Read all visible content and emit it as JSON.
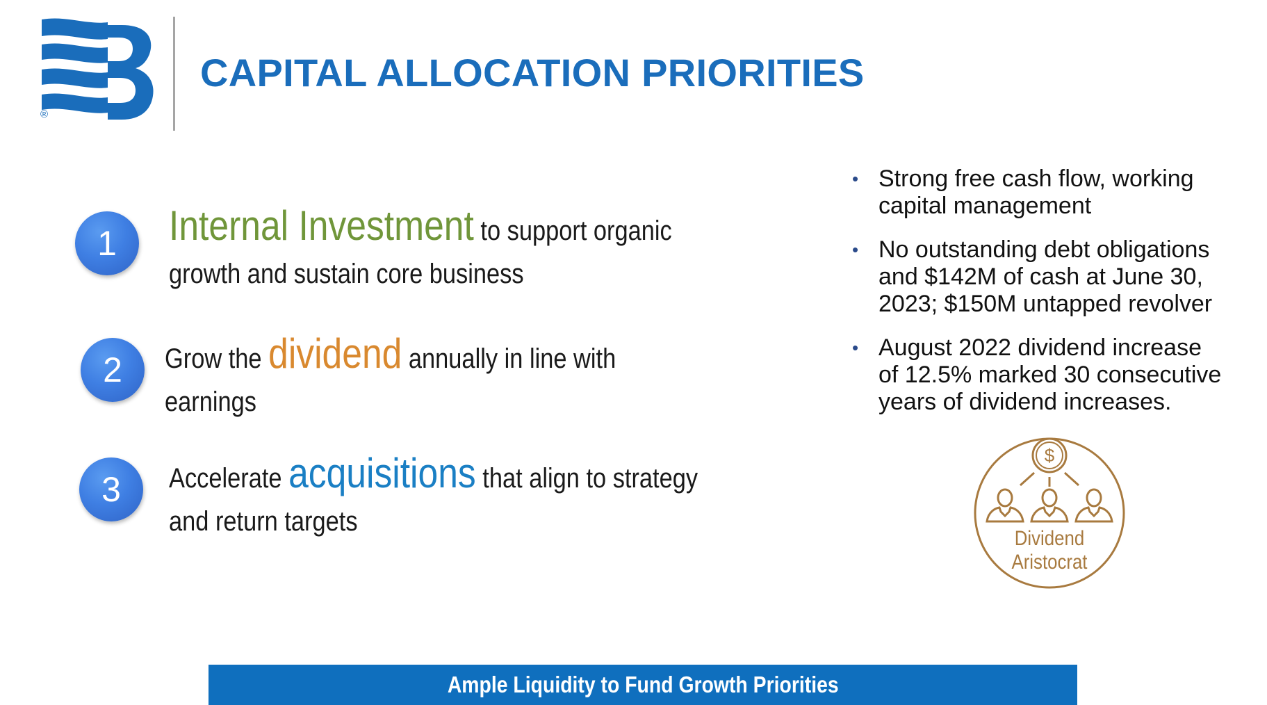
{
  "header": {
    "title": "CAPITAL ALLOCATION PRIORITIES",
    "logo_icon": "company-logo-icon",
    "registered_mark": "®"
  },
  "priorities": [
    {
      "number": "1",
      "keyword": "Internal Investment",
      "line1_after": " to support organic",
      "line2": "growth and sustain core business"
    },
    {
      "number": "2",
      "before": "Grow the ",
      "keyword": "dividend",
      "line1_after": " annually in line with",
      "line2": "earnings"
    },
    {
      "number": "3",
      "before": "Accelerate ",
      "keyword": "acquisitions",
      "line1_after": " that align to strategy",
      "line2": "and return targets"
    }
  ],
  "bullets": [
    {
      "line1": "Strong free cash flow, working",
      "line2": "capital management"
    },
    {
      "line1": "No outstanding debt obligations",
      "line2": "and $142M of cash at June 30,",
      "line3": "2023; $150M untapped revolver"
    },
    {
      "line1": "August 2022 dividend increase",
      "line2": "of 12.5% marked 30 consecutive",
      "line3": "years of dividend increases."
    }
  ],
  "badge": {
    "icon": "dividend-aristocrat-icon",
    "line1": "Dividend",
    "line2": "Aristocrat"
  },
  "footer": {
    "text": "Ample Liquidity to Fund Growth Priorities"
  },
  "colors": {
    "brand_blue": "#1a6dbb",
    "keyword_green": "#70963a",
    "keyword_orange": "#d9892f",
    "keyword_blue": "#1a7fc4",
    "badge_gold": "#a87a3f",
    "footer_bar": "#0f6fbe"
  }
}
